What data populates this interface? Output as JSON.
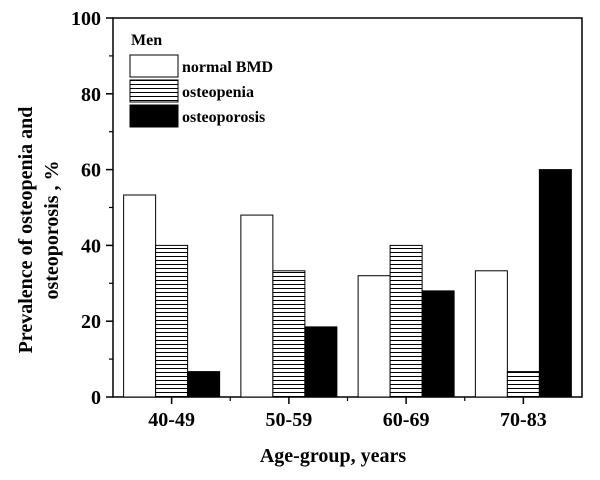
{
  "chart_data": {
    "type": "bar",
    "title": "",
    "xlabel": "Age-group, years",
    "ylabel_lines": [
      "Prevalence of osteopenia and",
      "osteoporosis , %"
    ],
    "ylim": [
      0,
      100
    ],
    "yticks": [
      0,
      20,
      40,
      60,
      80,
      100
    ],
    "categories": [
      "40-49",
      "50-59",
      "60-69",
      "70-83"
    ],
    "legend_title": "Men",
    "legend_position": "top-left",
    "grid": false,
    "series": [
      {
        "name": "normal BMD",
        "fill": "solid-white",
        "values": [
          53.3,
          48,
          32,
          33.3
        ]
      },
      {
        "name": "osteopenia",
        "fill": "horizontal-hatch",
        "values": [
          40,
          33.3,
          40,
          6.7
        ]
      },
      {
        "name": "osteoporosis",
        "fill": "solid-black",
        "values": [
          6.7,
          18.5,
          28,
          60
        ]
      }
    ],
    "colors": {
      "axis": "#000000",
      "bar_stroke": "#000000",
      "black_fill": "#000000",
      "white_fill": "#ffffff"
    }
  }
}
